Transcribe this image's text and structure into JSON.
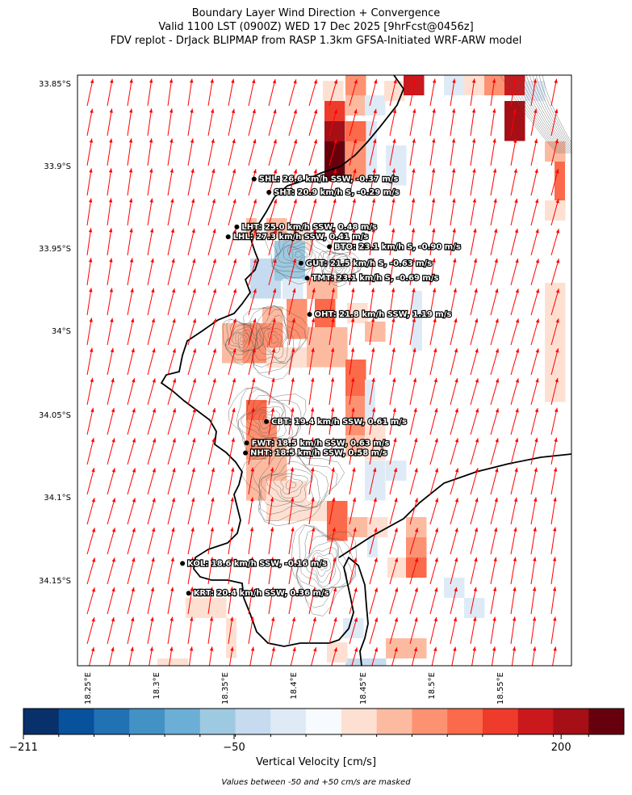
{
  "title": {
    "line1": "Boundary Layer Wind Direction + Convergence",
    "line2": "Valid 1100 LST (0900Z) WED 17 Dec 2025 [9hrFcst@0456z]",
    "line3": "FDV replot - DrJack BLIPMAP from RASP 1.3km GFSA-Initiated WRF-ARW model"
  },
  "axes": {
    "lat_labels": [
      "33.85°S",
      "33.9°S",
      "33.95°S",
      "34°S",
      "34.05°S",
      "34.1°S",
      "34.15°S"
    ],
    "lon_labels": [
      "18.25°E",
      "18.3°E",
      "18.35°E",
      "18.4°E",
      "18.45°E",
      "18.5°E",
      "18.55°E"
    ],
    "lat_range": [
      -34.2,
      -33.842
    ],
    "lon_range": [
      18.2,
      18.6
    ]
  },
  "stations": [
    {
      "code": "SHL",
      "label": "SHL: 26.6 km/h SSW, -0.37 m/s",
      "lon": 18.343,
      "lat": -33.905
    },
    {
      "code": "SHT",
      "label": "SHT: 20.9 km/h S, -0.29 m/s",
      "lon": 18.355,
      "lat": -33.913
    },
    {
      "code": "LHT",
      "label": "LHT: 25.0 km/h SSW, 0.48 m/s",
      "lon": 18.329,
      "lat": -33.934
    },
    {
      "code": "LHL",
      "label": "LHL: 27.3 km/h SSW, 0.41 m/s",
      "lon": 18.322,
      "lat": -33.94
    },
    {
      "code": "BTO",
      "label": "BTO: 23.1 km/h S, -0.90 m/s",
      "lon": 18.404,
      "lat": -33.946
    },
    {
      "code": "GUT",
      "label": "GUT: 21.5 km/h S, -0.63 m/s",
      "lon": 18.381,
      "lat": -33.956
    },
    {
      "code": "TMT",
      "label": "TMT: 23.1 km/h S, -0.69 m/s",
      "lon": 18.386,
      "lat": -33.965
    },
    {
      "code": "OHT",
      "label": "OHT: 21.8 km/h SSW, 1.19 m/s",
      "lon": 18.388,
      "lat": -33.987
    },
    {
      "code": "CBT",
      "label": "CBT: 19.4 km/h SSW, 0.61 m/s",
      "lon": 18.353,
      "lat": -34.052
    },
    {
      "code": "FWT",
      "label": "FWT: 18.5 km/h SSW, 0.63 m/s",
      "lon": 18.337,
      "lat": -34.065
    },
    {
      "code": "NHT",
      "label": "NHT: 18.5 km/h SSW, 0.58 m/s",
      "lon": 18.336,
      "lat": -34.071
    },
    {
      "code": "KOL",
      "label": "KOL: 18.6 km/h SSW, -0.16 m/s",
      "lon": 18.285,
      "lat": -34.138
    },
    {
      "code": "KRT",
      "label": "KRT: 20.4 km/h SSW, 0.36 m/s",
      "lon": 18.29,
      "lat": -34.156
    }
  ],
  "colorbar": {
    "label": "Vertical Velocity [cm/s]",
    "min": -211,
    "max": 248,
    "tick_labels": [
      "−211",
      "−50",
      "200"
    ],
    "tick_values": [
      -211,
      -50,
      200
    ],
    "colors": [
      "#08306b",
      "#08519c",
      "#2171b5",
      "#4292c6",
      "#6baed6",
      "#9ecae1",
      "#c6dbef",
      "#deebf7",
      "#f7fbff",
      "#fee0d2",
      "#fcbba1",
      "#fc9272",
      "#fb6a4a",
      "#ef3b2c",
      "#cb181d",
      "#a50f15",
      "#67000d"
    ]
  },
  "note": "Values between -50 and +50 cm/s are masked",
  "colors": {
    "wind_arrow": "#ff0000",
    "coastline": "#000000",
    "contour": "#555555"
  }
}
